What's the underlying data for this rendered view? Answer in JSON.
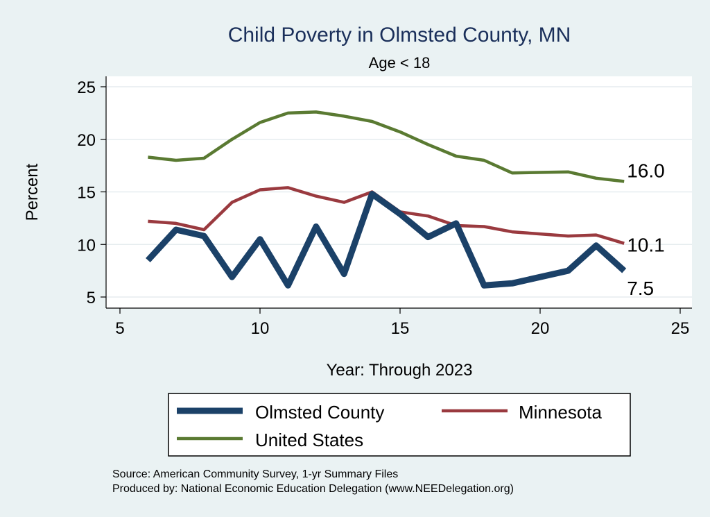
{
  "chart_data": {
    "type": "line",
    "title": "Child Poverty in Olmsted County, MN",
    "subtitle": "Age < 18",
    "xlabel": "Year: Through 2023",
    "ylabel": "Percent",
    "xlim": [
      5,
      25
    ],
    "ylim": [
      5,
      25
    ],
    "xticks": [
      5,
      10,
      15,
      20,
      25
    ],
    "yticks": [
      5,
      10,
      15,
      20,
      25
    ],
    "grid": "horizontal",
    "legend_position": "bottom",
    "x": [
      6,
      7,
      8,
      9,
      10,
      11,
      12,
      13,
      14,
      15,
      16,
      17,
      18,
      19,
      21,
      22,
      23
    ],
    "series": [
      {
        "name": "Olmsted County",
        "color": "#1b4168",
        "values": [
          8.5,
          11.4,
          10.8,
          6.9,
          10.5,
          6.1,
          11.7,
          7.2,
          14.8,
          12.9,
          10.7,
          12.0,
          6.1,
          6.3,
          7.5,
          9.9,
          7.5
        ],
        "end_label": "7.5"
      },
      {
        "name": "Minnesota",
        "color": "#9a3a3f",
        "values": [
          12.2,
          12.0,
          11.4,
          14.0,
          15.2,
          15.4,
          14.6,
          14.0,
          15.0,
          13.1,
          12.7,
          11.8,
          11.7,
          11.2,
          10.8,
          10.9,
          10.1
        ],
        "end_label": "10.1"
      },
      {
        "name": "United States",
        "color": "#5a7a32",
        "values": [
          18.3,
          18.0,
          18.2,
          20.0,
          21.6,
          22.5,
          22.6,
          22.2,
          21.7,
          20.7,
          19.5,
          18.4,
          18.0,
          16.8,
          16.9,
          16.3,
          16.0
        ],
        "end_label": "16.0"
      }
    ],
    "notes": [
      "Source: American Community Survey, 1-yr Summary Files",
      "Produced by: National Economic Education Delegation (www.NEEDelegation.org)"
    ]
  }
}
